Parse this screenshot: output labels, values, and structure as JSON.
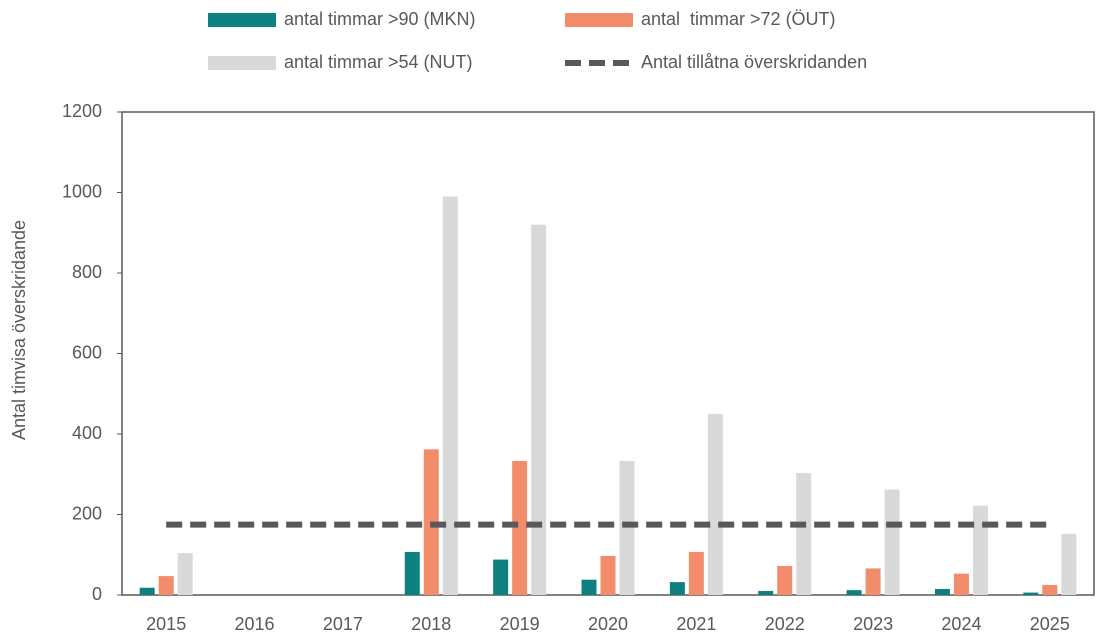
{
  "chart_data": {
    "type": "bar",
    "y_label": "Antal timvisa överskridande",
    "categories": [
      "2015",
      "2016",
      "2017",
      "2018",
      "2019",
      "2020",
      "2021",
      "2022",
      "2023",
      "2024",
      "2025"
    ],
    "series": [
      {
        "name": "antal timmar >90 (MKN)",
        "color": "#0e8080",
        "values": [
          18,
          null,
          null,
          107,
          88,
          38,
          32,
          10,
          12,
          15,
          6
        ]
      },
      {
        "name": "antal  timmar >72 (ÖUT)",
        "color": "#f28c6b",
        "values": [
          47,
          null,
          null,
          362,
          333,
          97,
          107,
          72,
          66,
          53,
          25
        ]
      },
      {
        "name": "antal timmar >54 (NUT)",
        "color": "#d9d9d9",
        "values": [
          104,
          null,
          null,
          990,
          920,
          333,
          450,
          303,
          262,
          222,
          152
        ]
      },
      {
        "name": "Antal tillåtna överskridanden",
        "color": "#595959",
        "type": "line",
        "dashed": true,
        "values": [
          175,
          175,
          175,
          175,
          175,
          175,
          175,
          175,
          175,
          175,
          175
        ]
      }
    ],
    "ylim": [
      0,
      1200
    ],
    "yticks": [
      0,
      200,
      400,
      600,
      800,
      1000,
      1200
    ],
    "grid": false
  }
}
